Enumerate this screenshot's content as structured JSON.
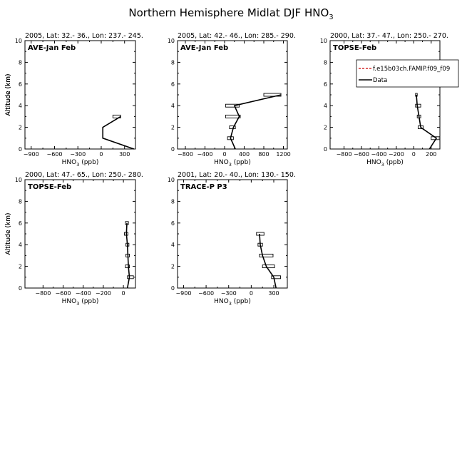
{
  "figure": {
    "title": "Northern Hemisphere Midlat DJF HNO",
    "title_sub": "3"
  },
  "legend": {
    "entries": [
      {
        "label": "f.e15b03ch.FAMIP.f09_f09",
        "color": "#cc0000",
        "dash": true
      },
      {
        "label": "Data",
        "color": "#000000",
        "dash": false
      }
    ]
  },
  "chart_data": [
    {
      "type": "line",
      "header": "2005, Lat: 32.- 36., Lon: 237.- 245.",
      "campaign": "AVE-Jan Feb",
      "xlabel": "HNO",
      "xlabel_sub": "3",
      "xlabel_unit": " (ppb)",
      "ylabel": "Altitude (km)",
      "xlim": [
        -980,
        440
      ],
      "ylim": [
        0,
        10
      ],
      "xticks": [
        -900,
        -600,
        -300,
        0,
        300
      ],
      "yticks": [
        0,
        2,
        4,
        6,
        8,
        10
      ],
      "series": [
        {
          "name": "Data",
          "x": [
            420,
            20,
            20,
            250
          ],
          "y": [
            0,
            1,
            2,
            3
          ]
        }
      ],
      "whiskers": [
        {
          "y": 3,
          "xmin": 150,
          "xmax": 250
        }
      ]
    },
    {
      "type": "line",
      "header": "2005, Lat: 42.- 46., Lon: 285.- 290.",
      "campaign": "AVE-Jan Feb",
      "xlabel": "HNO",
      "xlabel_sub": "3",
      "xlabel_unit": " (ppb)",
      "ylabel": "Altitude (km)",
      "xlim": [
        -960,
        1280
      ],
      "ylim": [
        0,
        10
      ],
      "xticks": [
        -800,
        -400,
        0,
        400,
        800,
        1200
      ],
      "yticks": [
        0,
        2,
        4,
        6,
        8,
        10
      ],
      "series": [
        {
          "name": "Data",
          "x": [
            220,
            120,
            180,
            300,
            200,
            1150
          ],
          "y": [
            0,
            1,
            2,
            3,
            4,
            5
          ]
        }
      ],
      "whiskers": [
        {
          "y": 1,
          "xmin": 60,
          "xmax": 180
        },
        {
          "y": 2,
          "xmin": 100,
          "xmax": 220
        },
        {
          "y": 3,
          "xmin": 20,
          "xmax": 320
        },
        {
          "y": 4,
          "xmin": 20,
          "xmax": 300
        },
        {
          "y": 5,
          "xmin": 800,
          "xmax": 1150
        }
      ]
    },
    {
      "type": "line",
      "header": "2000, Lat: 37.- 47., Lon: 250.- 270.",
      "campaign": "TOPSE-Feb",
      "xlabel": "HNO",
      "xlabel_sub": "3",
      "xlabel_unit": " (ppb)",
      "ylabel": "Altitude (km)",
      "xlim": [
        -960,
        300
      ],
      "ylim": [
        0,
        10
      ],
      "xticks": [
        -800,
        -600,
        -400,
        -200,
        0,
        200
      ],
      "yticks": [
        0,
        2,
        4,
        6,
        8,
        10
      ],
      "series": [
        {
          "name": "Data",
          "x": [
            180,
            260,
            80,
            60,
            40,
            30
          ],
          "y": [
            0,
            1,
            2,
            3,
            4,
            5
          ]
        }
      ],
      "whiskers": [
        {
          "y": 1,
          "xmin": 200,
          "xmax": 300
        },
        {
          "y": 2,
          "xmin": 50,
          "xmax": 110
        },
        {
          "y": 3,
          "xmin": 40,
          "xmax": 80
        },
        {
          "y": 4,
          "xmin": 20,
          "xmax": 80
        },
        {
          "y": 5,
          "xmin": 20,
          "xmax": 40
        }
      ]
    },
    {
      "type": "line",
      "header": "2000, Lat: 47.- 65., Lon: 250.- 280.",
      "campaign": "TOPSE-Feb",
      "xlabel": "HNO",
      "xlabel_sub": "3",
      "xlabel_unit": " (ppb)",
      "ylabel": "Altitude (km)",
      "xlim": [
        -980,
        120
      ],
      "ylim": [
        0,
        10
      ],
      "xticks": [
        -800,
        -600,
        -400,
        -200,
        0
      ],
      "yticks": [
        0,
        2,
        4,
        6,
        8,
        10
      ],
      "series": [
        {
          "name": "Data",
          "x": [
            40,
            60,
            50,
            45,
            40,
            30,
            35
          ],
          "y": [
            0,
            1,
            2,
            3,
            4,
            5,
            6
          ]
        }
      ],
      "whiskers": [
        {
          "y": 1,
          "xmin": 40,
          "xmax": 100
        },
        {
          "y": 2,
          "xmin": 20,
          "xmax": 60
        },
        {
          "y": 3,
          "xmin": 25,
          "xmax": 60
        },
        {
          "y": 4,
          "xmin": 25,
          "xmax": 55
        },
        {
          "y": 5,
          "xmin": 10,
          "xmax": 45
        },
        {
          "y": 6,
          "xmin": 20,
          "xmax": 50
        }
      ]
    },
    {
      "type": "line",
      "header": "2001, Lat: 20.- 40., Lon: 130.- 150.",
      "campaign": "TRACE-P P3",
      "xlabel": "HNO",
      "xlabel_sub": "3",
      "xlabel_unit": " (ppb)",
      "ylabel": "Altitude (km)",
      "xlim": [
        -980,
        480
      ],
      "ylim": [
        0,
        10
      ],
      "xticks": [
        -900,
        -600,
        -300,
        0,
        300
      ],
      "yticks": [
        0,
        2,
        4,
        6,
        8,
        10
      ],
      "series": [
        {
          "name": "Data",
          "x": [
            330,
            300,
            200,
            150,
            120,
            110
          ],
          "y": [
            0,
            1,
            2,
            3,
            4,
            5
          ]
        }
      ],
      "whiskers": [
        {
          "y": 1,
          "xmin": 270,
          "xmax": 390
        },
        {
          "y": 2,
          "xmin": 150,
          "xmax": 310
        },
        {
          "y": 3,
          "xmin": 110,
          "xmax": 290
        },
        {
          "y": 4,
          "xmin": 90,
          "xmax": 150
        },
        {
          "y": 5,
          "xmin": 70,
          "xmax": 170
        }
      ]
    }
  ]
}
